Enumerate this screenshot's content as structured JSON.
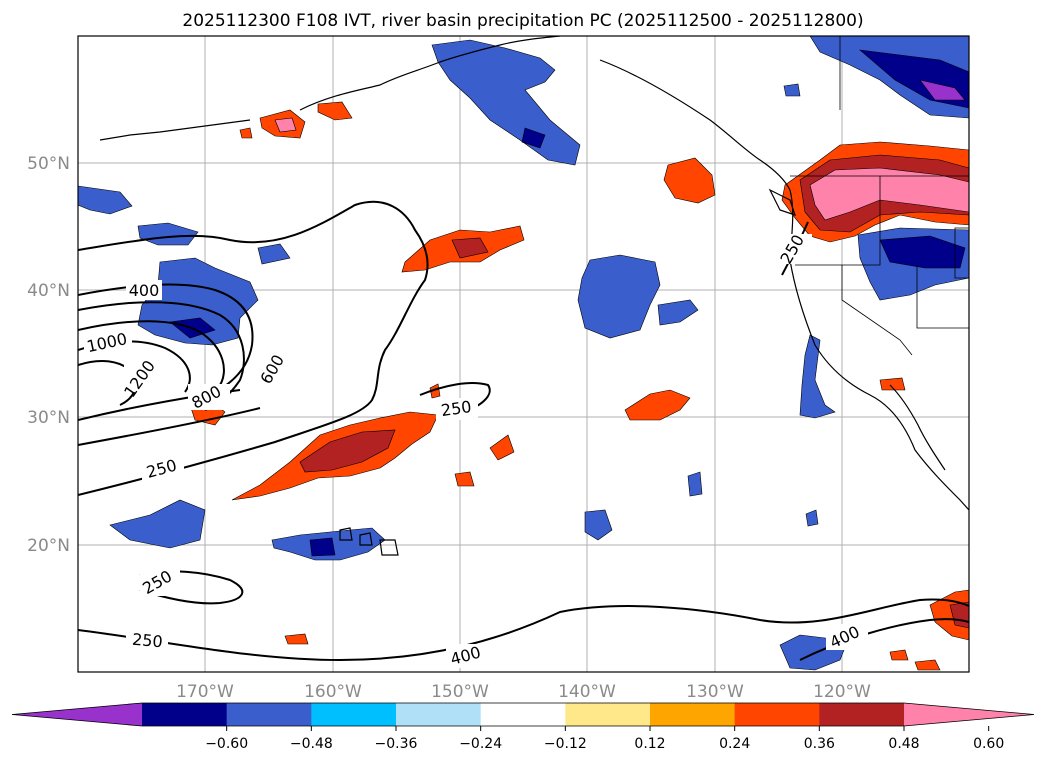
{
  "title": "2025112300 F108 IVT, river basin precipitation PC (2025112500 - 2025112800)",
  "map": {
    "lat_ticks": [
      "20°N",
      "30°N",
      "40°N",
      "50°N"
    ],
    "lon_ticks": [
      "170°W",
      "160°W",
      "150°W",
      "140°W",
      "130°W",
      "120°W"
    ],
    "contour_labels": [
      "400",
      "1000",
      "1200",
      "600",
      "800",
      "250",
      "250",
      "250",
      "250",
      "400",
      "400",
      "250"
    ]
  },
  "colorbar": {
    "ticks": [
      "−0.60",
      "−0.48",
      "−0.36",
      "−0.24",
      "−0.12",
      "0.12",
      "0.24",
      "0.36",
      "0.48",
      "0.60"
    ],
    "colors": [
      "#9932CC",
      "#00008B",
      "#3A5FCD",
      "#00BFFF",
      "#B0E0F8",
      "#FFFFFF",
      "#FFE88A",
      "#FFA500",
      "#FF4500",
      "#B22222",
      "#FF82AB"
    ]
  }
}
